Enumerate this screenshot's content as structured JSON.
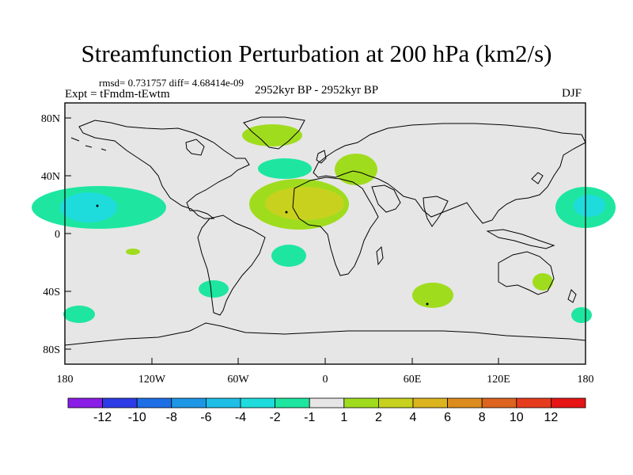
{
  "title": "Streamfunction Perturbation at 200 hPa (km2/s)",
  "stats": "rmsd= 0.731757  diff= 4.68414e-09",
  "experiment": "Expt = tFmdm-tEwtm",
  "period": "2952kyr BP - 2952kyr BP",
  "season": "DJF",
  "map": {
    "background_color": "#e6e6e6",
    "lat_labels": [
      "80N",
      "40N",
      "0",
      "40S",
      "80S"
    ],
    "lon_labels": [
      "180",
      "120W",
      "60W",
      "0",
      "60E",
      "120E",
      "180"
    ]
  },
  "colorbar": {
    "labels": [
      "-12",
      "-10",
      "-8",
      "-6",
      "-4",
      "-2",
      "-1",
      "1",
      "2",
      "4",
      "6",
      "8",
      "10",
      "12"
    ],
    "colors": [
      "#8a1ee6",
      "#2d3ce6",
      "#1e6ee6",
      "#1e96e6",
      "#1ebee6",
      "#1edcdc",
      "#1ee6a0",
      "#e6e6e6",
      "#a0dc1e",
      "#c8d21e",
      "#dcb41e",
      "#dc8c1e",
      "#dc641e",
      "#e63c1e",
      "#e61414"
    ]
  }
}
